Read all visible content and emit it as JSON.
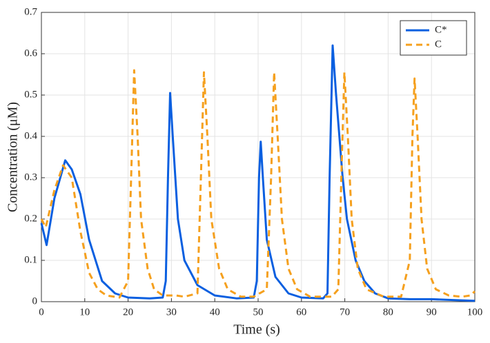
{
  "chart_data": {
    "type": "line",
    "xlabel": "Time (s)",
    "ylabel": "Concentration (μM)",
    "xlim": [
      0,
      100
    ],
    "xticks": [
      0,
      10,
      20,
      30,
      40,
      50,
      60,
      70,
      80,
      90,
      100
    ],
    "ylim": [
      0,
      0.7
    ],
    "yticks": [
      0,
      0.1,
      0.2,
      0.3,
      0.4,
      0.5,
      0.6,
      0.7
    ],
    "grid": true,
    "legend": "upper right",
    "series": [
      {
        "name": "C*",
        "color": "#0a5fe0",
        "style": "solid",
        "x": [
          0,
          1.2,
          3,
          5.5,
          7,
          9,
          11,
          14,
          17,
          20,
          25,
          28,
          28.7,
          29.2,
          29.7,
          30.3,
          31.5,
          33,
          36,
          40,
          45,
          49,
          49.7,
          50.2,
          50.6,
          51.1,
          52,
          54,
          57,
          60,
          65,
          66,
          66.5,
          67.2,
          68,
          69.5,
          70.5,
          72.5,
          74.5,
          77,
          80,
          85,
          90,
          95,
          100
        ],
        "values": [
          0.19,
          0.137,
          0.25,
          0.342,
          0.32,
          0.26,
          0.15,
          0.05,
          0.02,
          0.01,
          0.008,
          0.01,
          0.05,
          0.3,
          0.505,
          0.4,
          0.2,
          0.1,
          0.04,
          0.015,
          0.008,
          0.01,
          0.05,
          0.3,
          0.387,
          0.3,
          0.15,
          0.06,
          0.02,
          0.01,
          0.008,
          0.02,
          0.3,
          0.62,
          0.5,
          0.3,
          0.2,
          0.1,
          0.05,
          0.02,
          0.008,
          0.006,
          0.006,
          0.004,
          0.002
        ]
      },
      {
        "name": "C",
        "color": "#f5a01e",
        "style": "dashed",
        "x": [
          0,
          1,
          3,
          5,
          7,
          9,
          11,
          13,
          15,
          18,
          20,
          20.7,
          21.4,
          22.2,
          23,
          24.5,
          26,
          28,
          31,
          33,
          36,
          36.8,
          37.5,
          38.3,
          39.2,
          41,
          43,
          46,
          49,
          52,
          53,
          53.7,
          54.5,
          55.5,
          57,
          59,
          62,
          67,
          68.5,
          69.2,
          69.9,
          70.7,
          71.6,
          73,
          75,
          79,
          83,
          85,
          85.6,
          86.1,
          86.8,
          87.7,
          89,
          91,
          94,
          97,
          99,
          100
        ],
        "values": [
          0.2,
          0.18,
          0.27,
          0.33,
          0.3,
          0.17,
          0.07,
          0.03,
          0.015,
          0.01,
          0.05,
          0.3,
          0.56,
          0.4,
          0.2,
          0.08,
          0.03,
          0.015,
          0.015,
          0.012,
          0.02,
          0.3,
          0.555,
          0.4,
          0.2,
          0.08,
          0.03,
          0.012,
          0.012,
          0.03,
          0.3,
          0.555,
          0.4,
          0.2,
          0.08,
          0.03,
          0.012,
          0.012,
          0.03,
          0.3,
          0.555,
          0.4,
          0.2,
          0.08,
          0.03,
          0.012,
          0.012,
          0.1,
          0.4,
          0.54,
          0.4,
          0.2,
          0.08,
          0.03,
          0.015,
          0.012,
          0.015,
          0.025
        ]
      }
    ]
  }
}
